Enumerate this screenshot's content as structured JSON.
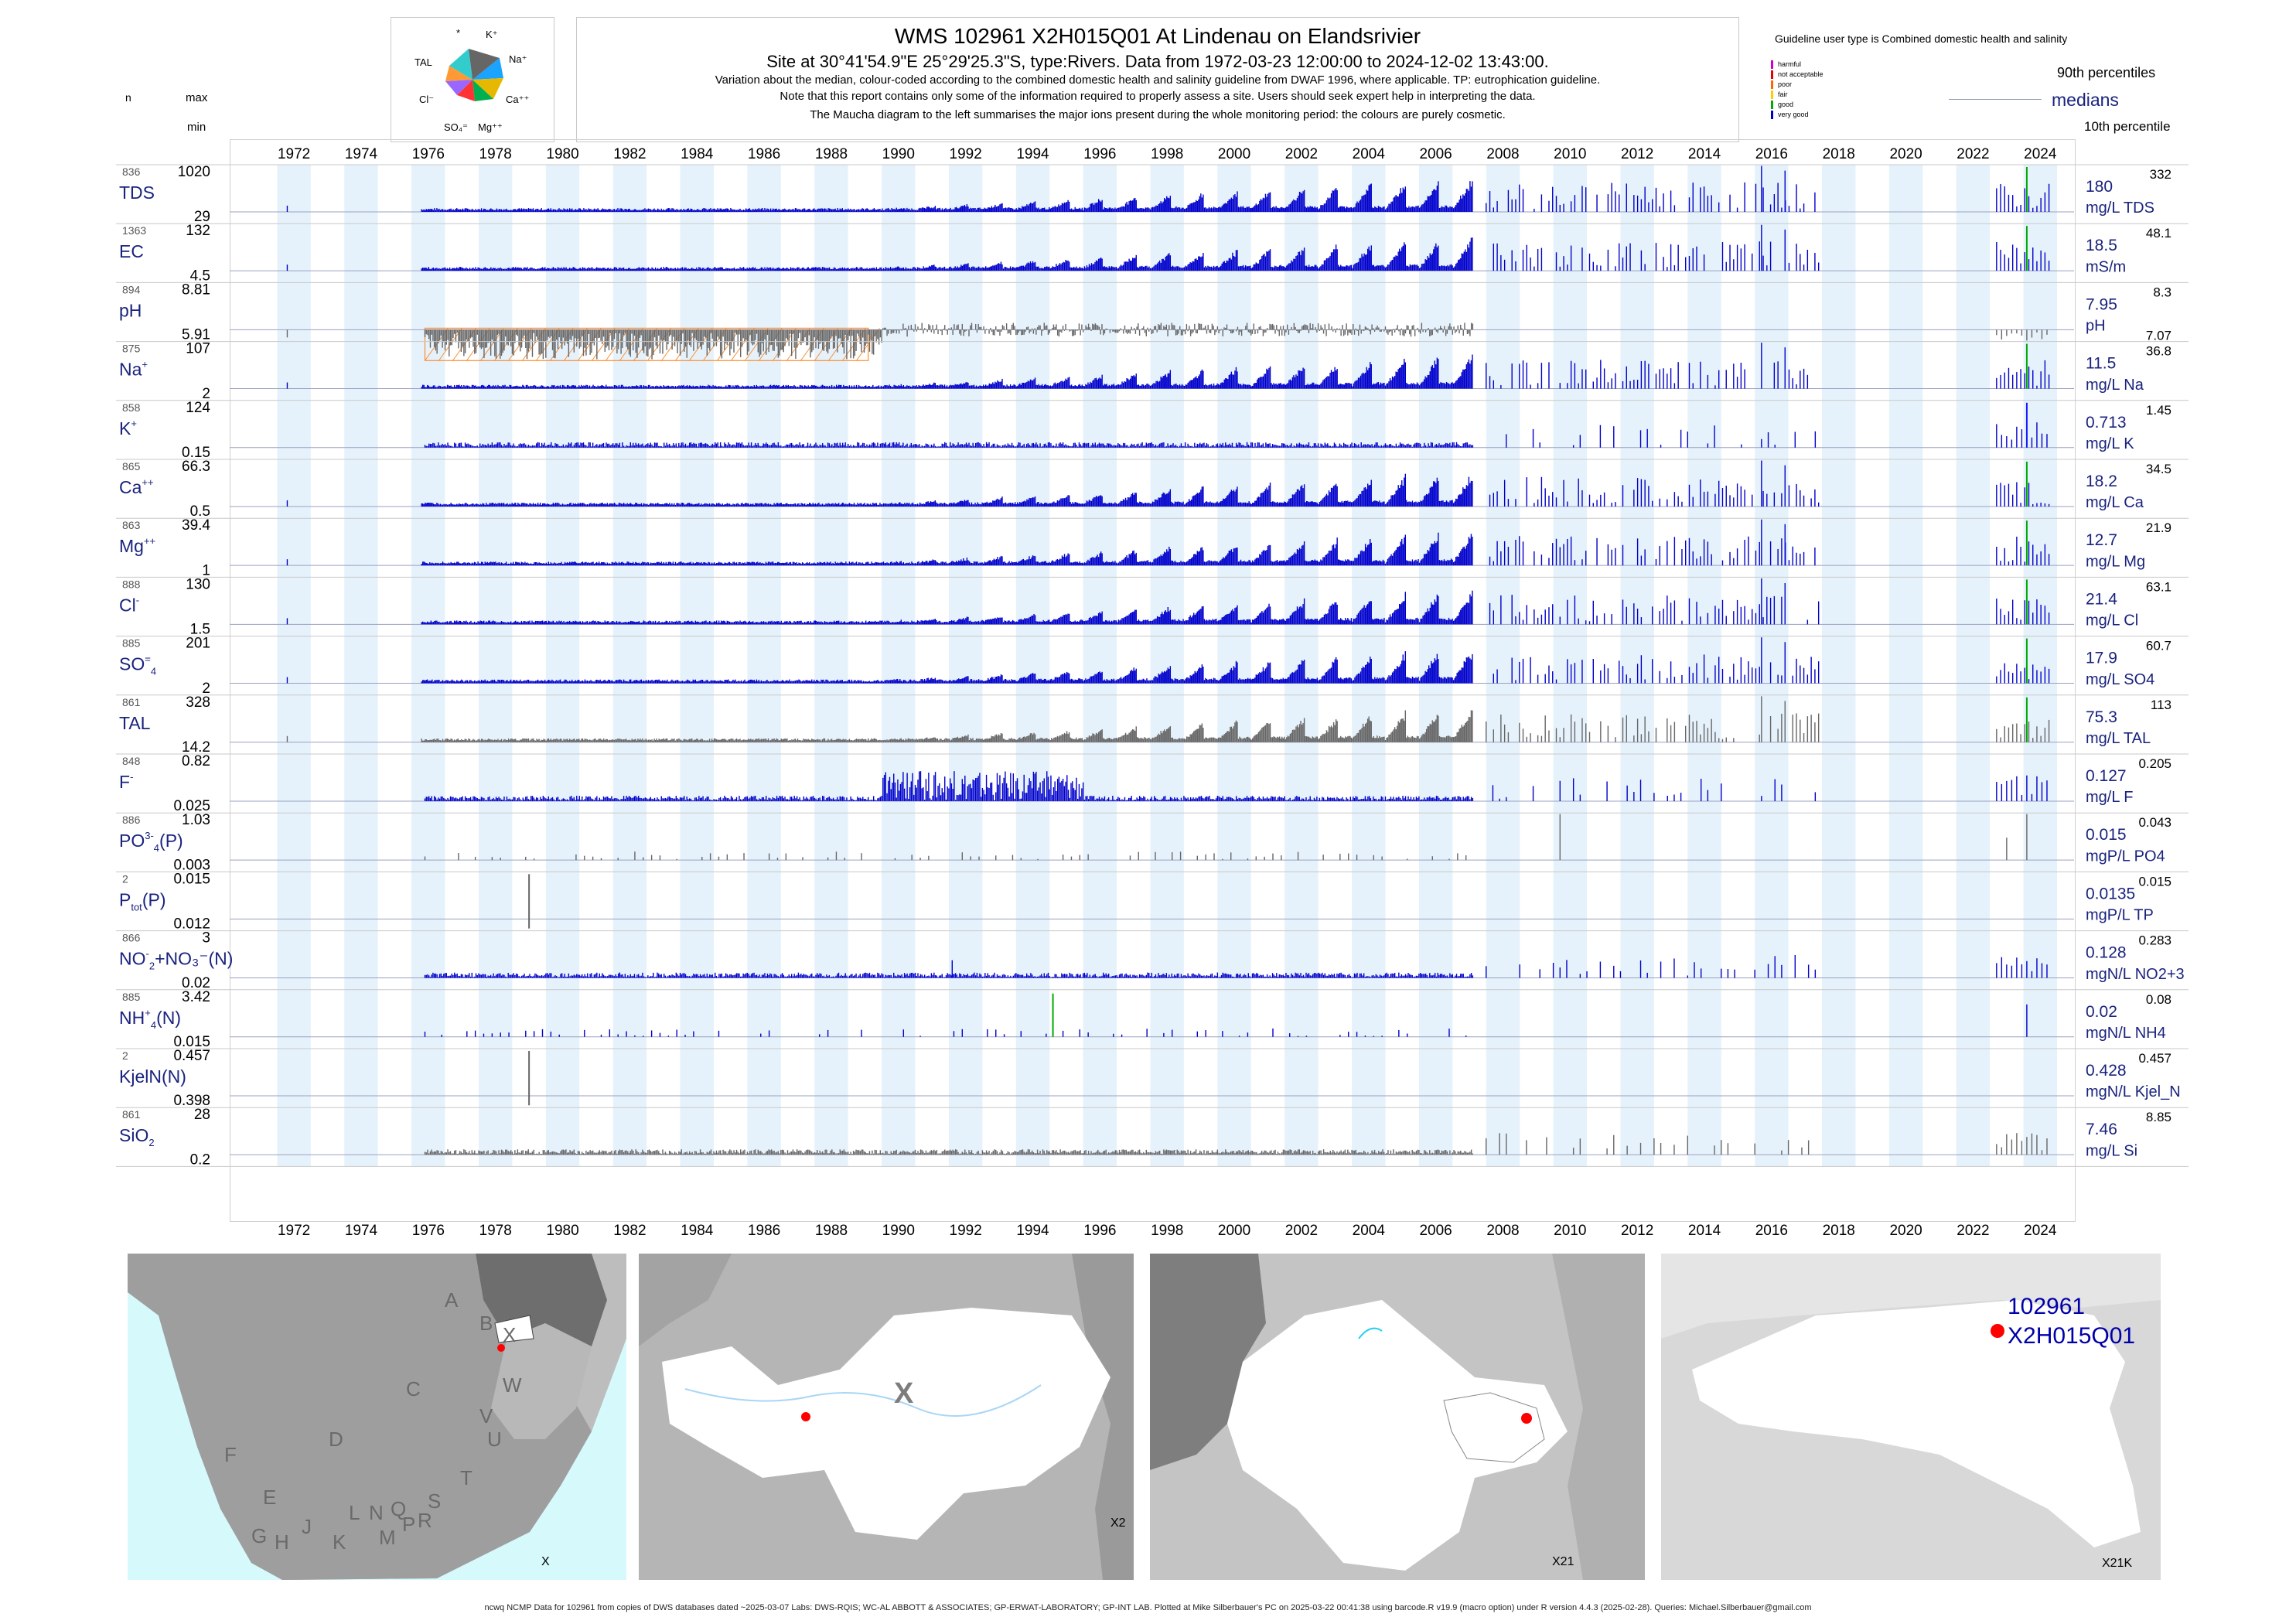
{
  "header": {
    "title": "WMS 102961 X2H015Q01 At Lindenau on Elandsrivier",
    "site_line": "Site at 30°41'54.9\"E 25°29'25.3\"S, type:Rivers.  Data from 1972-03-23 12:00:00 to 2024-12-02 13:43:00.",
    "note1": "Variation about the median,  colour-coded according to the combined domestic health and salinity guideline from DWAF 1996, where applicable. TP: eutrophication guideline.",
    "note2": "Note that this report contains only some of the information required to properly assess a site. Users should seek expert help in interpreting the data.",
    "note3": "The Maucha diagram to the left summarises the major ions present during the whole monitoring period: the colours are purely cosmetic."
  },
  "maucha": {
    "labels": [
      "*",
      "K⁺",
      "Na⁺",
      "Ca⁺⁺",
      "Mg⁺⁺",
      "SO₄⁼",
      "Cl⁻",
      "TAL"
    ]
  },
  "legend": {
    "guideline_line": "Guideline user type is Combined domestic health and salinity",
    "categories": [
      {
        "label": "harmful",
        "color": "#cc00cc"
      },
      {
        "label": "not acceptable",
        "color": "#e60000"
      },
      {
        "label": "poor",
        "color": "#ff6600"
      },
      {
        "label": "fair",
        "color": "#ffcc00"
      },
      {
        "label": "good",
        "color": "#00aa00"
      },
      {
        "label": "very good",
        "color": "#0000cc"
      }
    ],
    "p90": "90th percentiles",
    "medians": "medians",
    "p10": "10th percentile"
  },
  "column_headers": {
    "n": "n",
    "max": "max",
    "min": "min"
  },
  "years": [
    "1972",
    "1974",
    "1976",
    "1978",
    "1980",
    "1982",
    "1984",
    "1986",
    "1988",
    "1990",
    "1992",
    "1994",
    "1996",
    "1998",
    "2000",
    "2002",
    "2004",
    "2006",
    "2008",
    "2010",
    "2012",
    "2014",
    "2016",
    "2018",
    "2020",
    "2022",
    "2024"
  ],
  "chart_data": {
    "type": "bar",
    "x_range": [
      1971,
      2025
    ],
    "color_good": "#0000cc",
    "color_neutral": "#666666",
    "rows": [
      {
        "id": "tds",
        "n": "836",
        "label": "TDS",
        "sup": "",
        "sub": "",
        "suffix": "",
        "max": "1020",
        "min": "29",
        "median": "180",
        "p90": "332",
        "p10": "",
        "unit": "mg/L TDS",
        "color": "#0000cc",
        "kind": "seasonal"
      },
      {
        "id": "ec",
        "n": "1363",
        "label": "EC",
        "sup": "",
        "sub": "",
        "suffix": "",
        "max": "132",
        "min": "4.5",
        "median": "18.5",
        "p90": "48.1",
        "p10": "",
        "unit": "mS/m",
        "color": "#0000cc",
        "kind": "seasonal"
      },
      {
        "id": "ph",
        "n": "894",
        "label": "pH",
        "sup": "",
        "sub": "",
        "suffix": "",
        "max": "8.81",
        "min": "5.91",
        "median": "7.95",
        "p90": "8.3",
        "p10": "7.07",
        "unit": "pH",
        "color": "#666666",
        "kind": "ph"
      },
      {
        "id": "na",
        "n": "875",
        "label": "Na",
        "sup": "+",
        "sub": "",
        "suffix": "",
        "max": "107",
        "min": "2",
        "median": "11.5",
        "p90": "36.8",
        "p10": "",
        "unit": "mg/L Na",
        "color": "#0000cc",
        "kind": "seasonal"
      },
      {
        "id": "k",
        "n": "858",
        "label": "K",
        "sup": "+",
        "sub": "",
        "suffix": "",
        "max": "124",
        "min": "0.15",
        "median": "0.713",
        "p90": "1.45",
        "p10": "",
        "unit": "mg/L K",
        "color": "#0000cc",
        "kind": "flat"
      },
      {
        "id": "ca",
        "n": "865",
        "label": "Ca",
        "sup": "++",
        "sub": "",
        "suffix": "",
        "max": "66.3",
        "min": "0.5",
        "median": "18.2",
        "p90": "34.5",
        "p10": "",
        "unit": "mg/L Ca",
        "color": "#0000cc",
        "kind": "seasonal"
      },
      {
        "id": "mg",
        "n": "863",
        "label": "Mg",
        "sup": "++",
        "sub": "",
        "suffix": "",
        "max": "39.4",
        "min": "1",
        "median": "12.7",
        "p90": "21.9",
        "p10": "",
        "unit": "mg/L Mg",
        "color": "#0000cc",
        "kind": "seasonal"
      },
      {
        "id": "cl",
        "n": "888",
        "label": "Cl",
        "sup": "-",
        "sub": "",
        "suffix": "",
        "max": "130",
        "min": "1.5",
        "median": "21.4",
        "p90": "63.1",
        "p10": "",
        "unit": "mg/L Cl",
        "color": "#0000cc",
        "kind": "seasonal"
      },
      {
        "id": "so4",
        "n": "885",
        "label": "SO",
        "sup": "=",
        "sub": "4",
        "suffix": "",
        "max": "201",
        "min": "2",
        "median": "17.9",
        "p90": "60.7",
        "p10": "",
        "unit": "mg/L SO4",
        "color": "#0000cc",
        "kind": "seasonal"
      },
      {
        "id": "tal",
        "n": "861",
        "label": "TAL",
        "sup": "",
        "sub": "",
        "suffix": "",
        "max": "328",
        "min": "14.2",
        "median": "75.3",
        "p90": "113",
        "p10": "",
        "unit": "mg/L TAL",
        "color": "#666666",
        "kind": "seasonal"
      },
      {
        "id": "f",
        "n": "848",
        "label": "F",
        "sup": "-",
        "sub": "",
        "suffix": "",
        "max": "0.82",
        "min": "0.025",
        "median": "0.127",
        "p90": "0.205",
        "p10": "",
        "unit": "mg/L F",
        "color": "#0000cc",
        "kind": "flat"
      },
      {
        "id": "po4",
        "n": "886",
        "label": "PO",
        "sup": "3-",
        "sub": "4",
        "suffix": "(P)",
        "max": "1.03",
        "min": "0.003",
        "median": "0.015",
        "p90": "0.043",
        "p10": "",
        "unit": "mgP/L PO4",
        "color": "#666666",
        "kind": "sparse"
      },
      {
        "id": "ptot",
        "n": "2",
        "label": "P",
        "sup": "",
        "sub": "tot",
        "suffix": "(P)",
        "max": "0.015",
        "min": "0.012",
        "median": "0.0135",
        "p90": "0.015",
        "p10": "",
        "unit": "mgP/L TP",
        "color": "#666666",
        "kind": "two"
      },
      {
        "id": "no23",
        "n": "866",
        "label": "NO",
        "sup": "-",
        "sub": "2",
        "suffix": "+NO₃⁻(N)",
        "max": "3",
        "min": "0.02",
        "median": "0.128",
        "p90": "0.283",
        "p10": "",
        "unit": "mgN/L NO2+3",
        "color": "#0000cc",
        "kind": "flat"
      },
      {
        "id": "nh4",
        "n": "885",
        "label": "NH",
        "sup": "+",
        "sub": "4",
        "suffix": "(N)",
        "max": "3.42",
        "min": "0.015",
        "median": "0.02",
        "p90": "0.08",
        "p10": "",
        "unit": "mgN/L NH4",
        "color": "#0000cc",
        "kind": "sparse"
      },
      {
        "id": "kjel",
        "n": "2",
        "label": "KjelN(N)",
        "sup": "",
        "sub": "",
        "suffix": "",
        "max": "0.457",
        "min": "0.398",
        "median": "0.428",
        "p90": "0.457",
        "p10": "",
        "unit": "mgN/L Kjel_N",
        "color": "#666666",
        "kind": "two"
      },
      {
        "id": "sio2",
        "n": "861",
        "label": "SiO",
        "sup": "",
        "sub": "2",
        "suffix": "",
        "max": "28",
        "min": "0.2",
        "median": "7.46",
        "p90": "8.85",
        "p10": "",
        "unit": "mg/L Si",
        "color": "#666666",
        "kind": "flat"
      }
    ]
  },
  "maps": {
    "panel1_labels": [
      "A",
      "B",
      "X",
      "W",
      "C",
      "D",
      "V",
      "U",
      "T",
      "F",
      "E",
      "G",
      "H",
      "J",
      "K",
      "L",
      "N",
      "Q",
      "M",
      "P",
      "R",
      "S"
    ],
    "panel1_caption": "X",
    "panel2_big_label": "X",
    "panel2_caption": "X2",
    "panel3_caption": "X21",
    "panel4_caption": "X21K",
    "site_id": "102961",
    "site_code": "X2H015Q01"
  },
  "footer": "ncwq NCMP Data for 102961 from copies of DWS databases dated ~2025-03-07 Labs: DWS-RQIS; WC-AL ABBOTT & ASSOCIATES; GP-ERWAT-LABORATORY; GP-INT LAB. Plotted at Mike Silberbauer's PC on 2025-03-22 00:41:38 using barcode.R v19.9 (macro option) under R version 4.4.3 (2025-02-28). Queries: Michael.Silberbauer@gmail.com"
}
